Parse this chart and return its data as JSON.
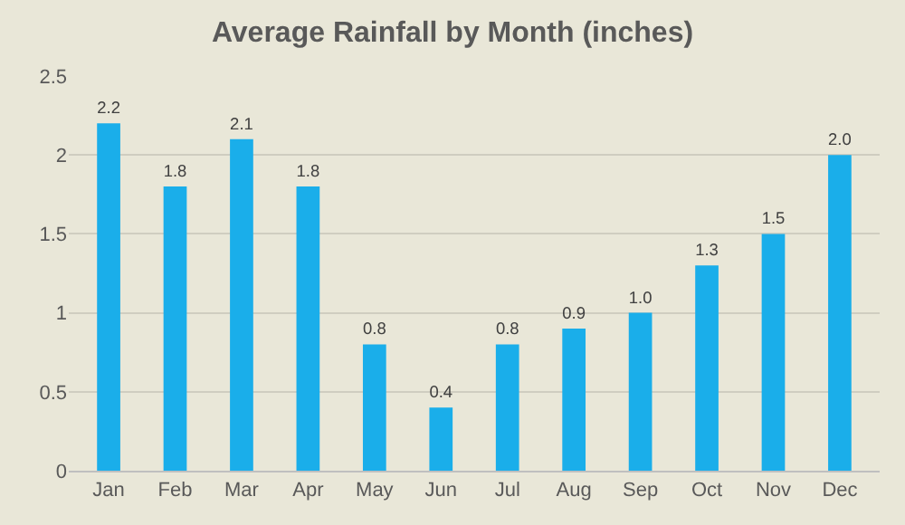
{
  "chart_data": {
    "type": "bar",
    "title": "Average Rainfall by Month (inches)",
    "categories": [
      "Jan",
      "Feb",
      "Mar",
      "Apr",
      "May",
      "Jun",
      "Jul",
      "Aug",
      "Sep",
      "Oct",
      "Nov",
      "Dec"
    ],
    "values": [
      2.2,
      1.8,
      2.1,
      1.8,
      0.8,
      0.4,
      0.8,
      0.9,
      1.0,
      1.3,
      1.5,
      2.0
    ],
    "value_labels": [
      "2.2",
      "1.8",
      "2.1",
      "1.8",
      "0.8",
      "0.4",
      "0.8",
      "0.9",
      "1.0",
      "1.3",
      "1.5",
      "2.0"
    ],
    "color": "#1aaeea",
    "ylim": [
      0,
      2.5
    ],
    "yticks": [
      0,
      0.5,
      1,
      1.5,
      2,
      2.5
    ],
    "grid": "y",
    "legend": false
  }
}
